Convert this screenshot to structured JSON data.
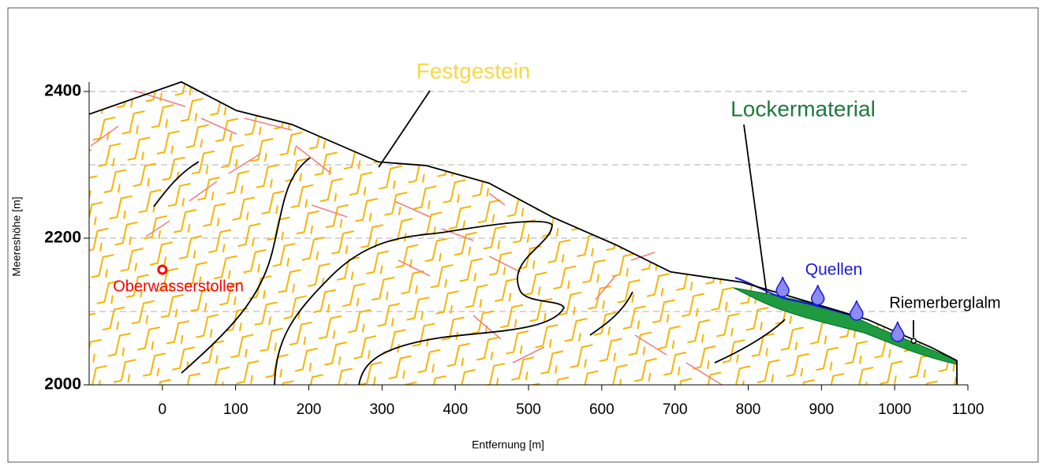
{
  "chart_data": {
    "type": "profile",
    "xlabel": "Entfernung [m]",
    "ylabel": "Meereshöhe [m]",
    "xlim": [
      -100,
      1100
    ],
    "ylim": [
      2000,
      2400
    ],
    "xticks": [
      0,
      100,
      200,
      300,
      400,
      500,
      600,
      700,
      800,
      900,
      1000,
      1100
    ],
    "yticks": [
      2000,
      2200,
      2400
    ],
    "ygrid": [
      2100,
      2200,
      2300,
      2400
    ],
    "grid": true,
    "terrain": {
      "color": "#000000",
      "x": [
        -100,
        26,
        101,
        177,
        295,
        360,
        446,
        532,
        619,
        694,
        791,
        866,
        963,
        1050,
        1085
      ],
      "values": [
        2369,
        2413,
        2374,
        2355,
        2304,
        2299,
        2275,
        2229,
        2191,
        2154,
        2140,
        2118,
        2089,
        2051,
        2033
      ]
    },
    "annotations": {
      "festgestein": "Festgestein",
      "lockermaterial": "Lockermaterial",
      "quellen": "Quellen",
      "riemerberglalm": "Riemerberglalm",
      "oberwasserstollen": "Oberwasserstollen"
    },
    "springs": {
      "color": "#1a1adb",
      "x": [
        847,
        895,
        948,
        1004
      ],
      "values": [
        2132,
        2121,
        2100,
        2071
      ]
    },
    "alm": {
      "x": 1026,
      "value": 2060
    },
    "stollen": {
      "color": "#ff0000",
      "x": 0,
      "value": 2157
    }
  }
}
